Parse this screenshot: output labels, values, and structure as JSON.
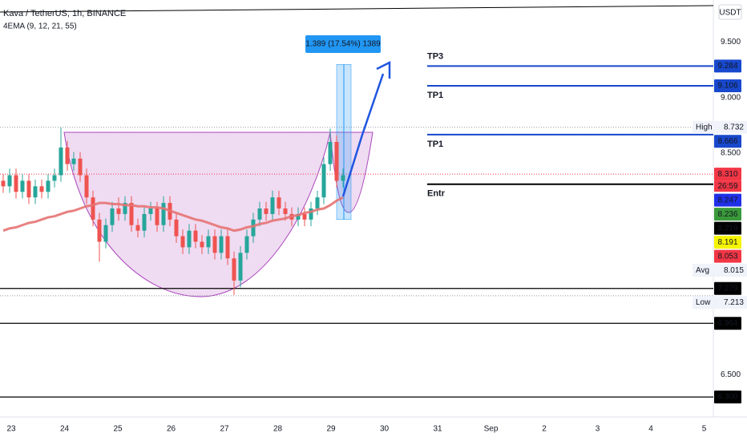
{
  "chart_data": {
    "type": "candlestick",
    "title": "Kava / TetherUS, 1h, BINANCE",
    "subtitle": "4EMA (9, 12, 21, 55)",
    "currency": "USDT",
    "x_labels": [
      "23",
      "24",
      "25",
      "26",
      "27",
      "28",
      "29",
      "30",
      "31",
      "Sep",
      "2",
      "3",
      "4",
      "5"
    ],
    "ylim": [
      6.12,
      9.88
    ],
    "yticks": [
      {
        "value": 9.5,
        "label": "9.500"
      },
      {
        "value": 9.0,
        "label": "9.000"
      },
      {
        "value": 8.5,
        "label": "8.500"
      },
      {
        "value": 6.5,
        "label": "6.500"
      }
    ],
    "up_color": "#26a69a",
    "down_color": "#ef5350",
    "candles": {
      "open": [
        8.25,
        8.2,
        8.3,
        8.15,
        8.25,
        8.1,
        8.2,
        8.15,
        8.25,
        8.3,
        8.55,
        8.4,
        8.45,
        8.3,
        8.1,
        7.9,
        7.7,
        7.85,
        8.0,
        7.95,
        8.05,
        7.85,
        7.8,
        7.95,
        8.0,
        7.85,
        8.05,
        7.9,
        7.75,
        7.65,
        7.8,
        7.7,
        7.65,
        7.75,
        7.6,
        7.75,
        7.55,
        7.35,
        7.6,
        7.75,
        7.9,
        8.0,
        7.95,
        8.1,
        8.0,
        7.95,
        7.9,
        7.95,
        7.9,
        8.0,
        8.1,
        8.4,
        8.6,
        8.25
      ],
      "high": [
        8.31,
        8.36,
        8.36,
        8.31,
        8.31,
        8.26,
        8.26,
        8.31,
        8.36,
        8.73,
        8.61,
        8.51,
        8.51,
        8.36,
        8.16,
        7.96,
        7.91,
        8.06,
        8.1,
        8.11,
        8.11,
        7.91,
        8.01,
        8.06,
        8.06,
        8.11,
        8.11,
        7.96,
        7.81,
        7.86,
        7.86,
        7.76,
        7.81,
        7.81,
        7.81,
        7.81,
        7.61,
        7.66,
        7.81,
        7.96,
        8.06,
        8.06,
        8.16,
        8.16,
        8.06,
        8.01,
        8.01,
        8.01,
        8.06,
        8.16,
        8.46,
        8.72,
        8.66,
        8.36
      ],
      "low": [
        8.14,
        8.14,
        8.09,
        8.09,
        8.04,
        8.04,
        8.09,
        8.09,
        8.19,
        8.24,
        8.34,
        8.34,
        8.24,
        8.04,
        7.84,
        7.52,
        7.64,
        7.79,
        7.89,
        7.89,
        7.79,
        7.74,
        7.74,
        7.89,
        7.79,
        7.79,
        7.84,
        7.69,
        7.59,
        7.59,
        7.64,
        7.59,
        7.59,
        7.54,
        7.54,
        7.49,
        7.22,
        7.29,
        7.54,
        7.69,
        7.84,
        7.89,
        7.89,
        7.94,
        7.89,
        7.84,
        7.84,
        7.84,
        7.84,
        7.94,
        8.04,
        8.34,
        8.19,
        8.19
      ],
      "close": [
        8.2,
        8.3,
        8.15,
        8.25,
        8.1,
        8.2,
        8.15,
        8.25,
        8.3,
        8.55,
        8.4,
        8.45,
        8.3,
        8.1,
        7.9,
        7.7,
        7.85,
        8.0,
        7.95,
        8.05,
        7.85,
        7.8,
        7.95,
        8.0,
        7.85,
        8.05,
        7.9,
        7.75,
        7.65,
        7.8,
        7.7,
        7.65,
        7.75,
        7.6,
        7.75,
        7.55,
        7.35,
        7.6,
        7.75,
        7.9,
        8.0,
        7.95,
        8.1,
        8.0,
        7.95,
        7.9,
        7.95,
        7.9,
        8.0,
        8.1,
        8.4,
        8.6,
        8.25,
        8.3
      ]
    },
    "ema": {
      "color": "#e57373",
      "values": [
        7.8,
        7.82,
        7.83,
        7.85,
        7.87,
        7.88,
        7.9,
        7.92,
        7.93,
        7.95,
        7.97,
        7.98,
        8.0,
        8.02,
        8.03,
        8.05,
        8.05,
        8.04,
        8.04,
        8.03,
        8.03,
        8.02,
        8.02,
        8.01,
        8.01,
        8.0,
        7.98,
        7.96,
        7.94,
        7.92,
        7.9,
        7.89,
        7.87,
        7.85,
        7.83,
        7.82,
        7.8,
        7.81,
        7.83,
        7.84,
        7.86,
        7.87,
        7.89,
        7.9,
        7.91,
        7.93,
        7.94,
        7.96,
        7.97,
        7.99,
        8.0,
        8.03,
        8.07,
        8.1
      ]
    },
    "targets": [
      {
        "label": "TP3",
        "value": 9.284,
        "color": "#1848cc"
      },
      {
        "label": "TP1",
        "value": 9.106,
        "color": "#1848cc"
      },
      {
        "label": "TP1",
        "value": 8.666,
        "color": "#1848cc"
      },
      {
        "label": "Entr",
        "value": 8.219,
        "color": "#000000"
      }
    ],
    "support_lines": [
      7.279,
      6.964,
      {
        "value": 6.3,
        "label": "6.300"
      }
    ],
    "high": {
      "name": "High",
      "value": 8.732
    },
    "low": {
      "name": "Low",
      "value": 7.213
    },
    "current_price": 8.31,
    "measure": {
      "label": "1.389 (17.54%) 1389",
      "range": [
        7.9,
        9.3
      ]
    },
    "price_labels": [
      {
        "value": 9.284,
        "color": "#1848cc",
        "text_color": "#ffffff"
      },
      {
        "value": 9.106,
        "color": "#1848cc",
        "text_color": "#ffffff"
      },
      {
        "name": "High",
        "value": 8.732,
        "color": "#f0f3fa",
        "text_color": "#131722"
      },
      {
        "value": 8.666,
        "color": "#1848cc",
        "text_color": "#ffffff"
      },
      {
        "value": 8.31,
        "label": "8.310",
        "color": "#f23645",
        "text_color": "#ffffff",
        "countdown": "26:59"
      },
      {
        "value": 8.247,
        "color": "#2030e8",
        "text_color": "#ffffff"
      },
      {
        "value": 8.236,
        "color": "#3a9a3a",
        "text_color": "#ffffff"
      },
      {
        "value": 8.219,
        "color": "#000000",
        "text_color": "#ffffff"
      },
      {
        "value": 8.191,
        "color": "#f5f500",
        "text_color": "#000000"
      },
      {
        "value": 8.053,
        "color": "#f23645",
        "text_color": "#ffffff"
      },
      {
        "name": "Avg",
        "value": 8.015,
        "color": "#f0f3fa",
        "text_color": "#131722"
      },
      {
        "value": 7.279,
        "color": "#000000",
        "text_color": "#ffffff"
      },
      {
        "name": "Low",
        "value": 7.213,
        "color": "#f0f3fa",
        "text_color": "#131722"
      },
      {
        "value": 6.964,
        "color": "#000000",
        "text_color": "#ffffff"
      },
      {
        "value": 6.3,
        "label": "6.300",
        "color": "#000000",
        "text_color": "#ffffff"
      }
    ]
  }
}
